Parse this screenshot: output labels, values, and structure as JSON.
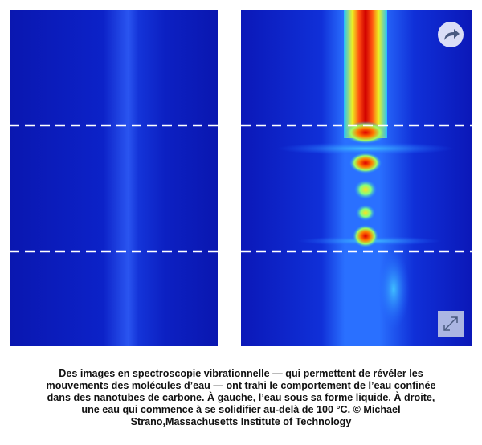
{
  "caption": {
    "lines": [
      "Des images en spectroscopie vibrationnelle — qui permettent de révéler les",
      "mouvements des molécules d’eau — ont trahi le comportement de l’eau confinée",
      "dans des nanotubes de carbone. À gauche, l’eau sous sa forme liquide. À droite,",
      "une eau qui commence à se solidifier au-delà de 100 °C. © Michael",
      "Strano,Massachusetts Institute of Technology"
    ]
  }
}
